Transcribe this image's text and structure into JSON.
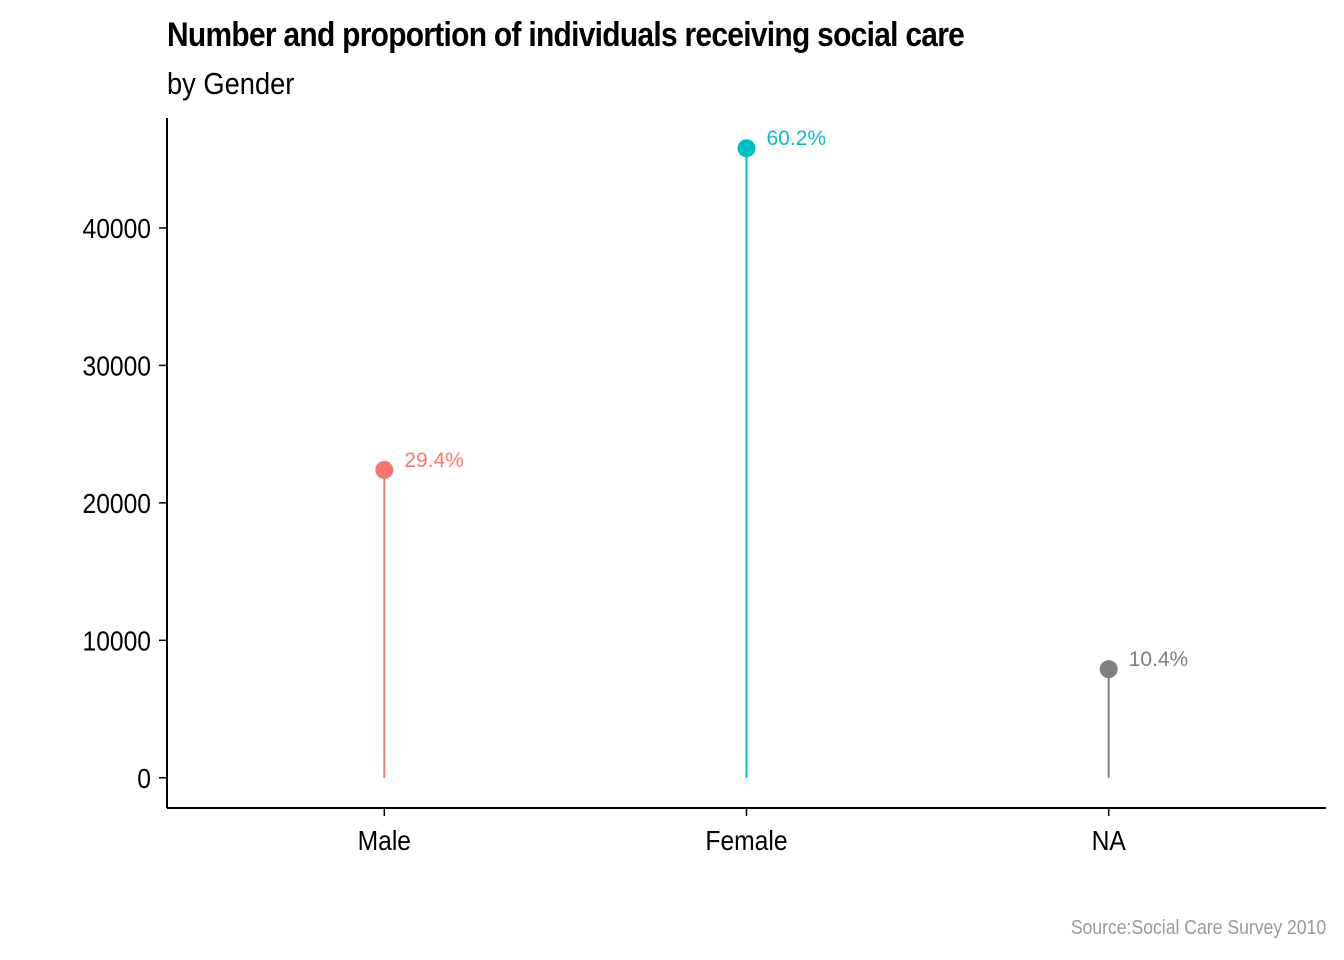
{
  "chart_data": {
    "type": "lollipop",
    "title": "Number and proportion of individuals receiving social care",
    "subtitle": "by Gender",
    "caption": "Source:Social Care Survey 2010",
    "xlabel": "",
    "ylabel": "",
    "categories": [
      "Male",
      "Female",
      "NA"
    ],
    "values": [
      22400,
      45800,
      7900
    ],
    "labels": [
      "29.4%",
      "60.2%",
      "10.4%"
    ],
    "colors": [
      "#F8766D",
      "#00BFC4",
      "#7F7F7F"
    ],
    "yticks": [
      "0",
      "10000",
      "20000",
      "30000",
      "40000"
    ],
    "ytick_values": [
      0,
      10000,
      20000,
      30000,
      40000
    ],
    "ylim": [
      -2200,
      48000
    ],
    "grid": false,
    "legend": "none"
  }
}
